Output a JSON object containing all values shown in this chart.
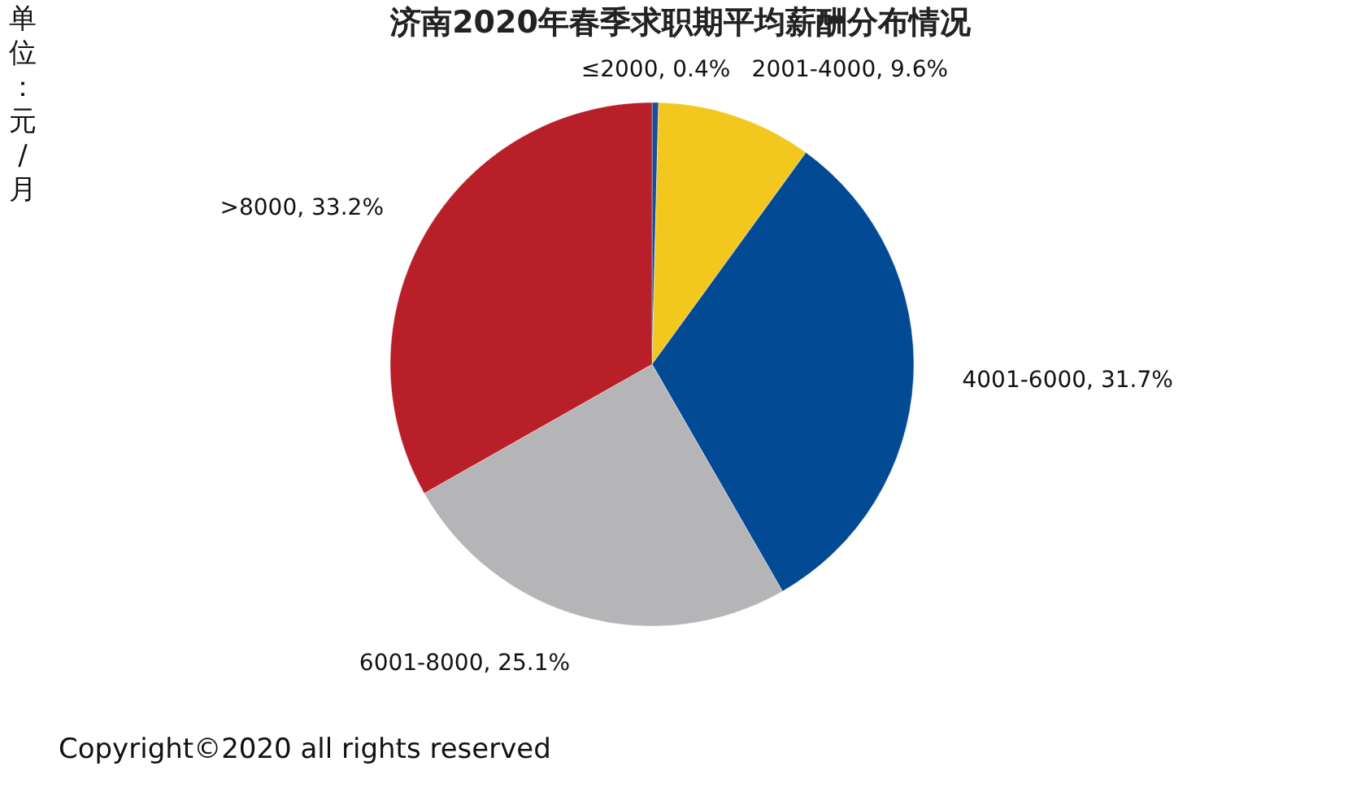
{
  "chart_data": {
    "type": "pie",
    "title": "济南2020年春季求职期平均薪酬分布情况",
    "ylabel": "单位：元/月",
    "categories": [
      "≤2000",
      "2001-4000",
      "4001-6000",
      "6001-8000",
      ">8000"
    ],
    "values": [
      0.4,
      9.6,
      31.7,
      25.1,
      33.2
    ],
    "colors": [
      "#1c4f96",
      "#f2c81f",
      "#034a95",
      "#b5b5b7",
      "#b81f29"
    ],
    "value_labels": [
      "0.4%",
      "9.6%",
      "31.7%",
      "25.1%",
      "33.2%"
    ],
    "annotations": [
      "Copyright©2020 all rights reserved"
    ],
    "legend": false
  }
}
